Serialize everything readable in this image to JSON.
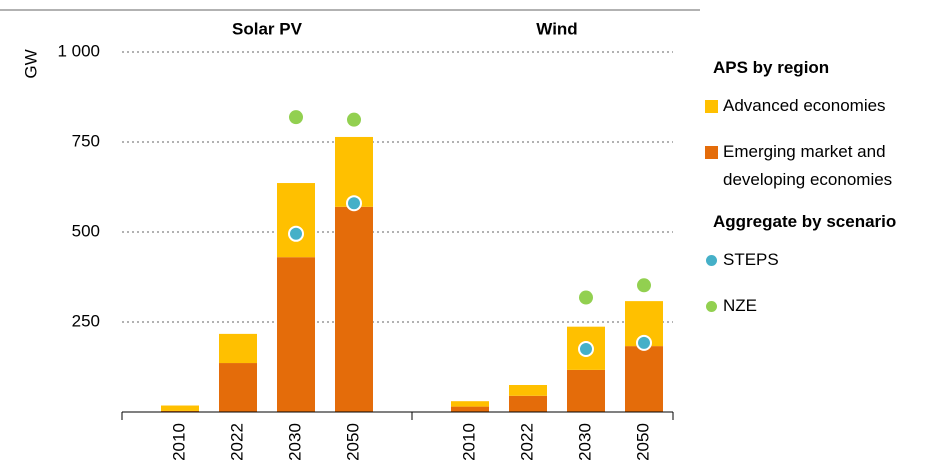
{
  "chart_data": {
    "type": "bar",
    "stacked": true,
    "y_label": "GW",
    "ylim": [
      0,
      1000
    ],
    "yticks": [
      0,
      250,
      500,
      750,
      {
        "value": 1000,
        "label": "1 000"
      }
    ],
    "grid": true,
    "panels": [
      {
        "title": "Solar PV",
        "categories": [
          "2010",
          "2022",
          "2030",
          "2050"
        ]
      },
      {
        "title": "Wind",
        "categories": [
          "2010",
          "2022",
          "2030",
          "2050"
        ]
      }
    ],
    "legend": [
      {
        "title": "APS by region",
        "series": [
          {
            "name": "Advanced economies",
            "color": "#FFC000",
            "kind": "bar",
            "values": [
              [
                15,
                81,
                206,
                194
              ],
              [
                15,
                30,
                120,
                125
              ]
            ]
          },
          {
            "name": "Emerging market and developing economies",
            "color": "#E46C0A",
            "kind": "bar",
            "values": [
              [
                3,
                136,
                430,
                570
              ],
              [
                15,
                45,
                117,
                183
              ]
            ]
          }
        ]
      },
      {
        "title": "Aggregate by scenario",
        "series": [
          {
            "name": "STEPS",
            "color": "#45B0C8",
            "kind": "dot",
            "values": [
              [
                null,
                null,
                495,
                580
              ],
              [
                null,
                null,
                175,
                192
              ]
            ]
          },
          {
            "name": "NZE",
            "color": "#92D050",
            "kind": "dot",
            "values": [
              [
                null,
                null,
                819,
                812
              ],
              [
                null,
                null,
                318,
                352
              ]
            ]
          }
        ]
      }
    ]
  }
}
